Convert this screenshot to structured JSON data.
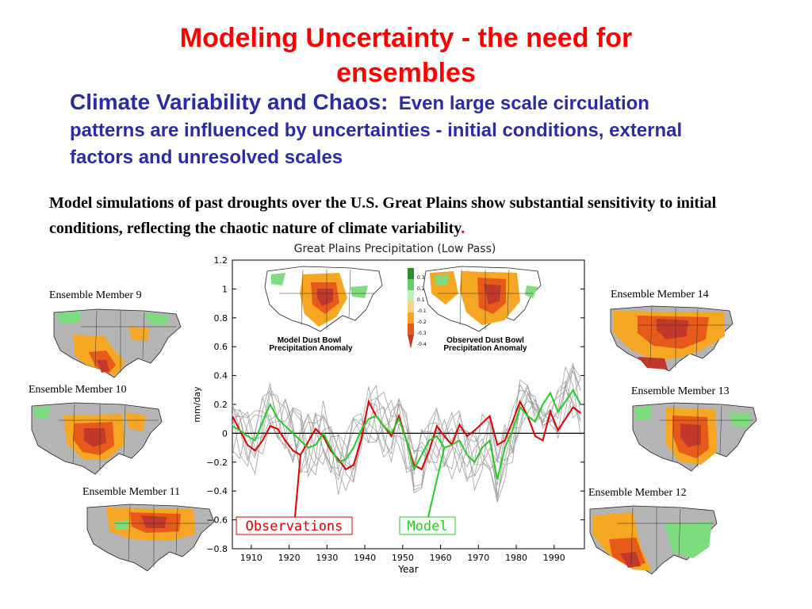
{
  "slide": {
    "title_line1": "Modeling Uncertainty - the need for",
    "title_line2": "ensembles",
    "subtitle_head": "Climate Variability and Chaos:",
    "subtitle_body": "Even large scale circulation patterns are influenced by uncertainties - initial conditions, external factors and unresolved scales",
    "body": "Model simulations of past droughts over the U.S. Great Plains show substantial sensitivity to initial conditions, reflecting the chaotic nature  of climate variability",
    "body_end": "."
  },
  "ensemble_maps": [
    {
      "label": "Ensemble Member 9"
    },
    {
      "label": "Ensemble Member 10"
    },
    {
      "label": "Ensemble Member 11"
    },
    {
      "label": "Ensemble Member 14"
    },
    {
      "label": "Ensemble Member 13"
    },
    {
      "label": "Ensemble Member 12"
    }
  ],
  "insets": {
    "model_line1": "Model Dust Bowl",
    "model_line2": "Precipitation Anomaly",
    "obs_line1": "Observed Dust Bowl",
    "obs_line2": "Precipitation Anomaly",
    "scale_labels": [
      "0.3",
      "0.2",
      "0.1",
      "-0.1",
      "-0.2",
      "-0.3",
      "-0.4"
    ]
  },
  "colors": {
    "title": "#ff0000",
    "subtitle": "#2b2ba6",
    "observations": "#e00000",
    "model": "#22cc22",
    "ensemble": "#a0a0a0",
    "drought_dark": "#c0392b",
    "drought_mid": "#e85a1a",
    "drought_light": "#f5a623",
    "wet": "#7ddc7d"
  },
  "chart_data": {
    "type": "line",
    "title": "Great Plains Precipitation (Low Pass)",
    "xlabel": "Year",
    "ylabel": "mm/day",
    "xlim": [
      1905,
      1998
    ],
    "ylim": [
      -0.8,
      1.2
    ],
    "xticks": [
      1910,
      1920,
      1930,
      1940,
      1950,
      1960,
      1970,
      1980,
      1990
    ],
    "yticks": [
      1.2,
      1,
      0.8,
      0.6,
      0.4,
      0.2,
      0,
      -0.2,
      -0.4,
      -0.6,
      -0.8
    ],
    "ytick_labels": [
      "1.2",
      "1",
      "0.8",
      "0.6",
      "0.4",
      "0.2",
      "0",
      "−0.2",
      "−0.4",
      "−0.6",
      "−0.8"
    ],
    "zero_line": true,
    "annotations": [
      {
        "text": "Observations",
        "points_to_year": 1923
      },
      {
        "text": "Model",
        "points_to_year": 1961
      }
    ],
    "series": [
      {
        "name": "Observations",
        "x": [
          1905,
          1907,
          1909,
          1911,
          1913,
          1915,
          1917,
          1919,
          1921,
          1923,
          1925,
          1927,
          1929,
          1931,
          1933,
          1935,
          1937,
          1939,
          1941,
          1943,
          1945,
          1947,
          1949,
          1951,
          1953,
          1955,
          1957,
          1959,
          1961,
          1963,
          1965,
          1967,
          1969,
          1971,
          1973,
          1975,
          1977,
          1979,
          1981,
          1983,
          1985,
          1987,
          1989,
          1991,
          1993,
          1995,
          1997
        ],
        "y": [
          0.12,
          0.02,
          -0.08,
          -0.12,
          -0.05,
          0.05,
          0.03,
          -0.05,
          -0.12,
          -0.15,
          -0.06,
          0.03,
          -0.02,
          -0.12,
          -0.18,
          -0.25,
          -0.22,
          -0.05,
          0.22,
          0.12,
          0.05,
          -0.02,
          0.12,
          -0.05,
          -0.22,
          -0.25,
          -0.12,
          0.05,
          -0.02,
          -0.08,
          0.06,
          -0.02,
          0.02,
          0.07,
          0.12,
          -0.08,
          -0.05,
          0.08,
          0.22,
          0.12,
          -0.02,
          -0.05,
          0.15,
          0.02,
          0.1,
          0.18,
          0.14
        ]
      },
      {
        "name": "Model",
        "x": [
          1905,
          1907,
          1909,
          1911,
          1913,
          1915,
          1917,
          1919,
          1921,
          1923,
          1925,
          1927,
          1929,
          1931,
          1933,
          1935,
          1937,
          1939,
          1941,
          1943,
          1945,
          1947,
          1949,
          1951,
          1953,
          1955,
          1957,
          1959,
          1961,
          1963,
          1965,
          1967,
          1969,
          1971,
          1973,
          1975,
          1977,
          1979,
          1981,
          1983,
          1985,
          1987,
          1989,
          1991,
          1993,
          1995,
          1997
        ],
        "y": [
          0.05,
          0.02,
          -0.02,
          -0.05,
          0.08,
          0.2,
          0.1,
          0.05,
          0.0,
          -0.05,
          -0.1,
          -0.08,
          0.0,
          -0.1,
          -0.2,
          -0.18,
          -0.1,
          0.02,
          0.1,
          0.12,
          0.05,
          0.0,
          0.1,
          -0.05,
          -0.25,
          -0.15,
          -0.05,
          -0.02,
          -0.1,
          -0.08,
          -0.05,
          -0.15,
          -0.2,
          -0.1,
          -0.05,
          -0.32,
          -0.1,
          0.02,
          0.18,
          0.12,
          0.08,
          0.2,
          0.28,
          0.15,
          0.22,
          0.3,
          0.2
        ]
      }
    ]
  }
}
